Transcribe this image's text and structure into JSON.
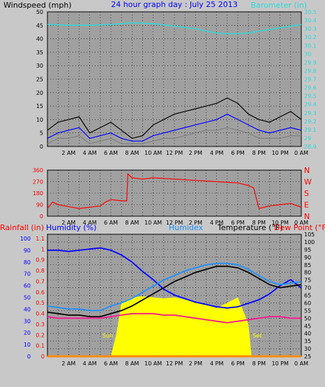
{
  "chart_data": [
    {
      "id": "wind_baro",
      "type": "line",
      "title": "24 hour graph day : July 25 2013",
      "left_axis_label": "Windspeed (mph)",
      "right_axis_label": "Barometer (in)",
      "left_ylim": [
        0,
        50
      ],
      "left_ticks": [
        "0",
        "5",
        "10",
        "15",
        "20",
        "25",
        "30",
        "35",
        "40",
        "45",
        "50"
      ],
      "right_ylim": [
        28.9,
        30.5
      ],
      "right_ticks": [
        "28.9",
        "29",
        "29.1",
        "29.2",
        "29.3",
        "29.4",
        "29.5",
        "29.6",
        "29.7",
        "29.8",
        "29.9",
        "30",
        "30.1",
        "30.2",
        "30.3",
        "30.4",
        "30.5"
      ],
      "x_ticks": [
        "2 AM",
        "4 AM",
        "6 AM",
        "8 AM",
        "10 AM",
        "12 PM",
        "2 PM",
        "4 PM",
        "6 PM",
        "8 PM",
        "10 PM",
        "0 AM"
      ],
      "grid": true,
      "series": [
        {
          "name": "Barometer (in)",
          "axis": "right",
          "color": "#30d8d8",
          "x": [
            0,
            2,
            4,
            6,
            8,
            10,
            12,
            14,
            15,
            16,
            17,
            18,
            19,
            20,
            22,
            24
          ],
          "y": [
            30.35,
            30.34,
            30.34,
            30.35,
            30.37,
            30.36,
            30.33,
            30.3,
            30.27,
            30.25,
            30.24,
            30.24,
            30.25,
            30.27,
            30.31,
            30.35
          ]
        },
        {
          "name": "Wind gust",
          "axis": "left",
          "color": "#000000",
          "x": [
            0,
            1,
            2,
            3,
            4,
            5,
            6,
            7,
            8,
            9,
            10,
            11,
            12,
            13,
            14,
            15,
            16,
            17,
            18,
            19,
            20,
            21,
            22,
            23,
            24
          ],
          "y": [
            6,
            9,
            10,
            11,
            5,
            7,
            9,
            6,
            3,
            4,
            8,
            10,
            12,
            13,
            14,
            15,
            16,
            18,
            16,
            12,
            10,
            9,
            11,
            13,
            10
          ]
        },
        {
          "name": "Wind average",
          "axis": "left",
          "color": "#0000ff",
          "x": [
            0,
            1,
            2,
            3,
            4,
            5,
            6,
            7,
            8,
            9,
            10,
            11,
            12,
            13,
            14,
            15,
            16,
            17,
            18,
            19,
            20,
            21,
            22,
            23,
            24
          ],
          "y": [
            3,
            5,
            6,
            7,
            3,
            4,
            5,
            3,
            2,
            2,
            4,
            5,
            6,
            7,
            8,
            9,
            10,
            12,
            10,
            8,
            6,
            5,
            6,
            7,
            6
          ]
        },
        {
          "name": "Wind low",
          "axis": "left",
          "color": "#808080",
          "x": [
            0,
            1,
            2,
            3,
            4,
            5,
            6,
            7,
            8,
            9,
            10,
            11,
            12,
            13,
            14,
            15,
            16,
            17,
            18,
            19,
            20,
            21,
            22,
            23,
            24
          ],
          "y": [
            1,
            3,
            3,
            4,
            1,
            2,
            3,
            1,
            1,
            1,
            2,
            3,
            3,
            4,
            5,
            6,
            6,
            7,
            6,
            5,
            3,
            3,
            3,
            4,
            4
          ]
        }
      ]
    },
    {
      "id": "wind_dir",
      "type": "line",
      "left_ylim": [
        0,
        360
      ],
      "left_ticks": [
        "0",
        "90",
        "180",
        "270",
        "360"
      ],
      "right_ticks": [
        "N",
        "W",
        "S",
        "E",
        "N"
      ],
      "x_ticks": [
        "2 AM",
        "4 AM",
        "6 AM",
        "8 AM",
        "10 AM",
        "12 PM",
        "2 PM",
        "4 PM",
        "6 PM",
        "8 PM",
        "10 PM",
        "0 AM"
      ],
      "grid": true,
      "series": [
        {
          "name": "Wind direction",
          "color": "#ff0000",
          "x": [
            0,
            0.5,
            1,
            2,
            3,
            4,
            5,
            5.5,
            6,
            7,
            7.5,
            7.6,
            8,
            9,
            10,
            12,
            14,
            16,
            18,
            19,
            19.5,
            20,
            21,
            22,
            23,
            24
          ],
          "y": [
            60,
            110,
            90,
            75,
            60,
            70,
            80,
            110,
            130,
            120,
            120,
            330,
            300,
            290,
            300,
            290,
            280,
            270,
            260,
            240,
            220,
            60,
            80,
            90,
            100,
            70
          ]
        }
      ]
    },
    {
      "id": "temp_humidity",
      "type": "line",
      "axis_labels": [
        "Rainfall (in)",
        "Humidity (%)",
        "Humidex",
        "Temperature (°F)",
        "Dew Point (°F)"
      ],
      "rain_ticks": [
        "0",
        "0.1",
        "0.2",
        "0.3",
        "0.4",
        "0.5",
        "0.6",
        "0.7",
        "0.8",
        "0.9",
        "1",
        "1.1"
      ],
      "humidity_ticks": [
        "0",
        "10",
        "20",
        "30",
        "40",
        "50",
        "60",
        "70",
        "80",
        "90",
        "100"
      ],
      "temp_ylim": [
        25,
        105
      ],
      "temp_ticks": [
        "25",
        "30",
        "35",
        "40",
        "45",
        "50",
        "55",
        "60",
        "65",
        "70",
        "75",
        "80",
        "85",
        "90",
        "95",
        "100",
        "105"
      ],
      "x_ticks": [
        "2 AM",
        "4 AM",
        "6 AM",
        "8 AM",
        "10 AM",
        "12 PM",
        "2 PM",
        "4 PM",
        "6 PM",
        "8 PM",
        "10 PM",
        "0 AM"
      ],
      "annotations": [
        "Sun",
        "Set"
      ],
      "grid": true,
      "series": [
        {
          "name": "Humidity (%)",
          "axis": "humidity",
          "color": "#0000ff",
          "x": [
            0,
            1,
            2,
            3,
            4,
            5,
            6,
            7,
            8,
            9,
            10,
            11,
            12,
            13,
            14,
            15,
            16,
            17,
            18,
            19,
            20,
            21,
            22,
            23,
            24
          ],
          "y": [
            90,
            90,
            89,
            90,
            91,
            92,
            90,
            86,
            80,
            72,
            65,
            57,
            52,
            49,
            46,
            44,
            42,
            41,
            42,
            45,
            48,
            53,
            60,
            65,
            58
          ]
        },
        {
          "name": "Humidex",
          "axis": "temp",
          "color": "#1e90ff",
          "x": [
            0,
            1,
            2,
            3,
            4,
            5,
            6,
            7,
            8,
            9,
            10,
            11,
            12,
            13,
            14,
            15,
            16,
            17,
            18,
            19,
            20,
            21,
            22,
            23,
            24
          ],
          "y": [
            58,
            57,
            56,
            56,
            55,
            55,
            58,
            60,
            63,
            67,
            71,
            75,
            78,
            81,
            83,
            85,
            86,
            86,
            85,
            82,
            78,
            74,
            72,
            73,
            74
          ]
        },
        {
          "name": "Temperature (°F)",
          "axis": "temp",
          "color": "#000000",
          "x": [
            0,
            1,
            2,
            3,
            4,
            5,
            6,
            7,
            8,
            9,
            10,
            11,
            12,
            13,
            14,
            15,
            16,
            17,
            18,
            19,
            20,
            21,
            22,
            23,
            24
          ],
          "y": [
            54,
            53,
            52,
            52,
            51,
            51,
            53,
            55,
            58,
            62,
            66,
            70,
            74,
            77,
            80,
            82,
            84,
            84,
            83,
            80,
            76,
            72,
            70,
            71,
            72
          ]
        },
        {
          "name": "Dew Point (°F)",
          "axis": "temp",
          "color": "#ff1493",
          "x": [
            0,
            1,
            2,
            3,
            4,
            5,
            6,
            7,
            8,
            9,
            10,
            11,
            12,
            13,
            14,
            15,
            16,
            17,
            18,
            19,
            20,
            21,
            22,
            23,
            24
          ],
          "y": [
            51,
            50,
            50,
            50,
            50,
            50,
            51,
            52,
            53,
            53,
            53,
            52,
            52,
            51,
            50,
            49,
            48,
            47,
            48,
            49,
            50,
            51,
            51,
            50,
            50
          ]
        },
        {
          "name": "Solar",
          "axis": "rain",
          "color": "#ffff00",
          "x": [
            6,
            6.5,
            7,
            8,
            9,
            10,
            11,
            12,
            13,
            14,
            15,
            16,
            17,
            18,
            19,
            19.3
          ],
          "y": [
            0,
            0.2,
            0.5,
            0.55,
            0.56,
            0.55,
            0.54,
            0.55,
            0.53,
            0.5,
            0.48,
            0.45,
            0.5,
            0.55,
            0.3,
            0
          ]
        },
        {
          "name": "Rainfall (in)",
          "axis": "rain",
          "color": "#ff8c00",
          "x": [
            0,
            24
          ],
          "y": [
            0,
            0
          ]
        }
      ]
    }
  ]
}
